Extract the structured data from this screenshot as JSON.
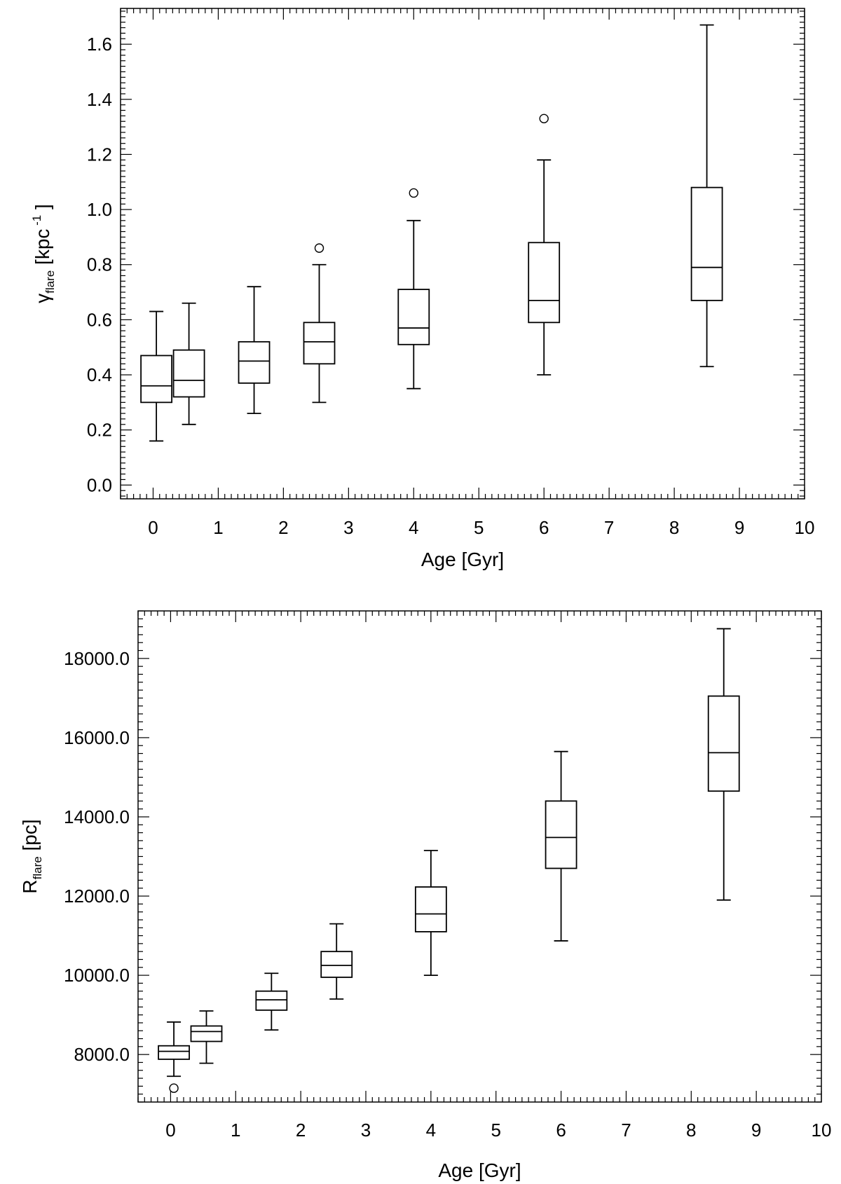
{
  "chart_data": [
    {
      "type": "box",
      "xlabel": "Age [Gyr]",
      "ylabel": {
        "main": "γ",
        "sub": "flare",
        "rest": " [kpc",
        "sup": "-1",
        "close": " ]"
      },
      "xlim": [
        -0.5,
        10
      ],
      "ylim": [
        -0.05,
        1.73
      ],
      "x_ticks": [
        0,
        1,
        2,
        3,
        4,
        5,
        6,
        7,
        8,
        9,
        10
      ],
      "y_ticks": [
        0.0,
        0.2,
        0.4,
        0.6,
        0.8,
        1.0,
        1.2,
        1.4,
        1.6
      ],
      "y_tick_labels": [
        "0.0",
        "0.2",
        "0.4",
        "0.6",
        "0.8",
        "1.0",
        "1.2",
        "1.4",
        "1.6"
      ],
      "x_minor_step": 0.1,
      "y_minor_step": 0.02,
      "boxes": [
        {
          "x": 0.05,
          "min": 0.16,
          "q1": 0.3,
          "median": 0.36,
          "q3": 0.47,
          "max": 0.63,
          "outliers": []
        },
        {
          "x": 0.55,
          "min": 0.22,
          "q1": 0.32,
          "median": 0.38,
          "q3": 0.49,
          "max": 0.66,
          "outliers": []
        },
        {
          "x": 1.55,
          "min": 0.26,
          "q1": 0.37,
          "median": 0.45,
          "q3": 0.52,
          "max": 0.72,
          "outliers": []
        },
        {
          "x": 2.55,
          "min": 0.3,
          "q1": 0.44,
          "median": 0.52,
          "q3": 0.59,
          "max": 0.8,
          "outliers": [
            0.86
          ]
        },
        {
          "x": 4.0,
          "min": 0.35,
          "q1": 0.51,
          "median": 0.57,
          "q3": 0.71,
          "max": 0.96,
          "outliers": [
            1.06
          ]
        },
        {
          "x": 6.0,
          "min": 0.4,
          "q1": 0.59,
          "median": 0.67,
          "q3": 0.88,
          "max": 1.18,
          "outliers": [
            1.33
          ]
        },
        {
          "x": 8.5,
          "min": 0.43,
          "q1": 0.67,
          "median": 0.79,
          "q3": 1.08,
          "max": 1.67,
          "outliers": []
        }
      ]
    },
    {
      "type": "box",
      "xlabel": "Age [Gyr]",
      "ylabel": {
        "main": "R",
        "sub": "flare",
        "rest": " [pc]",
        "sup": "",
        "close": ""
      },
      "xlim": [
        -0.5,
        10
      ],
      "ylim": [
        6800,
        19200
      ],
      "x_ticks": [
        0,
        1,
        2,
        3,
        4,
        5,
        6,
        7,
        8,
        9,
        10
      ],
      "y_ticks": [
        8000,
        10000,
        12000,
        14000,
        16000,
        18000
      ],
      "y_tick_labels": [
        "8000.0",
        "10000.0",
        "12000.0",
        "14000.0",
        "16000.0",
        "18000.0"
      ],
      "x_minor_step": 0.1,
      "y_minor_step": 200,
      "boxes": [
        {
          "x": 0.05,
          "min": 7450,
          "q1": 7880,
          "median": 8080,
          "q3": 8220,
          "max": 8820,
          "outliers": [
            7150
          ]
        },
        {
          "x": 0.55,
          "min": 7780,
          "q1": 8330,
          "median": 8580,
          "q3": 8720,
          "max": 9100,
          "outliers": []
        },
        {
          "x": 1.55,
          "min": 8620,
          "q1": 9120,
          "median": 9380,
          "q3": 9600,
          "max": 10050,
          "outliers": []
        },
        {
          "x": 2.55,
          "min": 9400,
          "q1": 9950,
          "median": 10250,
          "q3": 10600,
          "max": 11300,
          "outliers": []
        },
        {
          "x": 4.0,
          "min": 10000,
          "q1": 11100,
          "median": 11550,
          "q3": 12230,
          "max": 13150,
          "outliers": []
        },
        {
          "x": 6.0,
          "min": 10870,
          "q1": 12700,
          "median": 13480,
          "q3": 14400,
          "max": 15650,
          "outliers": []
        },
        {
          "x": 8.5,
          "min": 11900,
          "q1": 14650,
          "median": 15620,
          "q3": 17050,
          "max": 18750,
          "outliers": []
        }
      ]
    }
  ]
}
